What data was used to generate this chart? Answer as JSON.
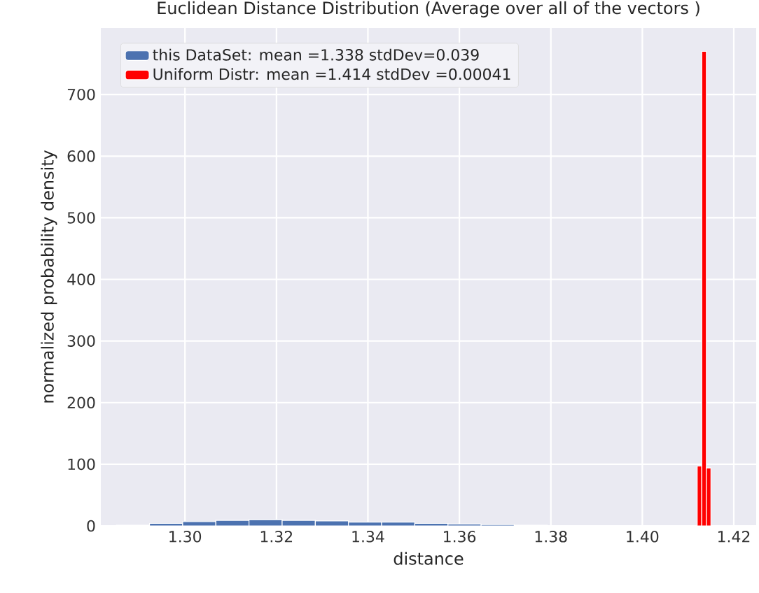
{
  "chart_data": {
    "type": "histogram",
    "title": "Euclidean Distance Distribution (Average over all of the vectors )",
    "xlabel": "distance",
    "ylabel": "normalized probability density",
    "series": [
      {
        "name": "this DataSet: mean =1.338 stdDev=0.039",
        "color": "#4c72b0",
        "values": [
          1,
          4,
          7,
          9,
          10,
          9,
          8,
          6,
          6,
          4,
          3,
          2,
          1,
          null,
          null,
          null,
          null
        ]
      },
      {
        "name": "Uniform Distr: mean =1.414 stdDev =0.00041",
        "color": "#ff0000",
        "values": [
          null,
          null,
          null,
          null,
          null,
          null,
          null,
          null,
          null,
          null,
          null,
          null,
          null,
          null,
          97,
          770,
          94
        ]
      }
    ],
    "bins": [
      1.285,
      1.29225,
      1.2995,
      1.30675,
      1.314,
      1.32125,
      1.3285,
      1.33575,
      1.343,
      1.35025,
      1.3575,
      1.36475,
      1.372,
      1.37925,
      1.412,
      1.413,
      1.414,
      1.415
    ],
    "xlim": [
      1.2816,
      1.4249
    ],
    "ylim": [
      0,
      808
    ],
    "xticks": [
      {
        "value": 1.3,
        "label": "1.30"
      },
      {
        "value": 1.32,
        "label": "1.32"
      },
      {
        "value": 1.34,
        "label": "1.34"
      },
      {
        "value": 1.36,
        "label": "1.36"
      },
      {
        "value": 1.38,
        "label": "1.38"
      },
      {
        "value": 1.4,
        "label": "1.40"
      },
      {
        "value": 1.42,
        "label": "1.42"
      }
    ],
    "yticks": [
      0,
      100,
      200,
      300,
      400,
      500,
      600,
      700
    ],
    "grid": true,
    "legend": "top left"
  }
}
